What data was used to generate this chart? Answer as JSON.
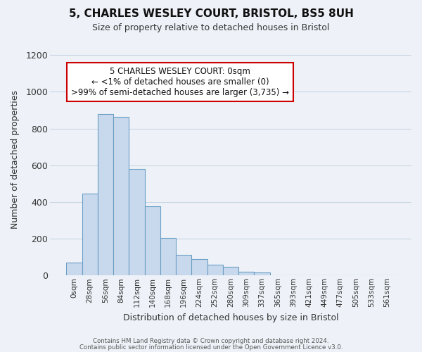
{
  "title1": "5, CHARLES WESLEY COURT, BRISTOL, BS5 8UH",
  "title2": "Size of property relative to detached houses in Bristol",
  "xlabel": "Distribution of detached houses by size in Bristol",
  "ylabel": "Number of detached properties",
  "bin_labels": [
    "0sqm",
    "28sqm",
    "56sqm",
    "84sqm",
    "112sqm",
    "140sqm",
    "168sqm",
    "196sqm",
    "224sqm",
    "252sqm",
    "280sqm",
    "309sqm",
    "337sqm",
    "365sqm",
    "393sqm",
    "421sqm",
    "449sqm",
    "477sqm",
    "505sqm",
    "533sqm",
    "561sqm"
  ],
  "bar_values": [
    70,
    445,
    880,
    865,
    580,
    375,
    205,
    113,
    90,
    57,
    46,
    20,
    17,
    0,
    0,
    0,
    0,
    0,
    0,
    0,
    0
  ],
  "bar_color": "#c9d9ed",
  "bar_edge_color": "#6a9ec5",
  "annotation_line1": "5 CHARLES WESLEY COURT: 0sqm",
  "annotation_line2": "← <1% of detached houses are smaller (0)",
  "annotation_line3": ">99% of semi-detached houses are larger (3,735) →",
  "annotation_box_edge_color": "#cc0000",
  "annotation_box_face_color": "#ffffff",
  "grid_color": "#c8d4e3",
  "background_color": "#eef2f8",
  "ylim": [
    0,
    1260
  ],
  "yticks": [
    0,
    200,
    400,
    600,
    800,
    1000,
    1200
  ],
  "footer1": "Contains HM Land Registry data © Crown copyright and database right 2024.",
  "footer2": "Contains public sector information licensed under the Open Government Licence v3.0."
}
